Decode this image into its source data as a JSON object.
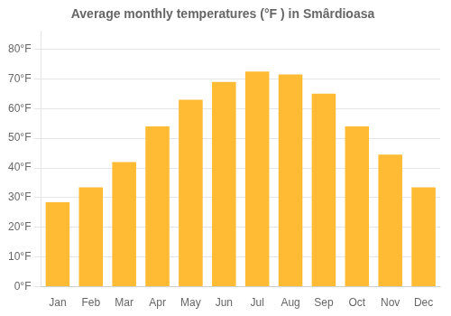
{
  "chart_data": {
    "type": "bar",
    "title": "Average monthly temperatures (°F ) in Smârdioasa",
    "categories": [
      "Jan",
      "Feb",
      "Mar",
      "Apr",
      "May",
      "Jun",
      "Jul",
      "Aug",
      "Sep",
      "Oct",
      "Nov",
      "Dec"
    ],
    "values": [
      28.5,
      33.5,
      42.0,
      54.0,
      63.0,
      69.0,
      72.5,
      71.5,
      65.0,
      54.0,
      44.5,
      33.5
    ],
    "color": "#FFBB33",
    "ylim": [
      0,
      86
    ],
    "yticks": [
      {
        "value": 0,
        "label": "0°F"
      },
      {
        "value": 10,
        "label": "10°F"
      },
      {
        "value": 20,
        "label": "20°F"
      },
      {
        "value": 30,
        "label": "30°F"
      },
      {
        "value": 40,
        "label": "40°F"
      },
      {
        "value": 50,
        "label": "50°F"
      },
      {
        "value": 60,
        "label": "60°F"
      },
      {
        "value": 70,
        "label": "70°F"
      },
      {
        "value": 80,
        "label": "80°F"
      }
    ],
    "grid": true
  }
}
